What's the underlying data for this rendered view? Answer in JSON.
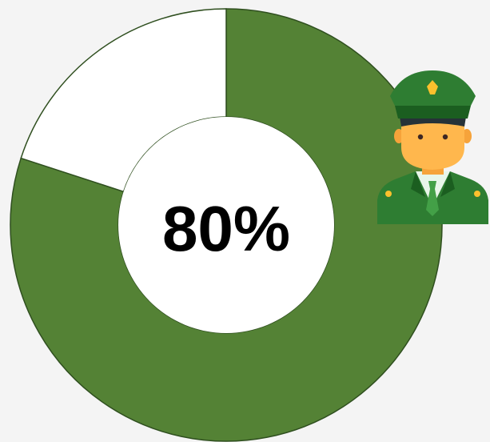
{
  "chart_data": {
    "type": "pie",
    "donut": true,
    "slices": [
      {
        "label": "",
        "value": 80,
        "color": "#548235"
      },
      {
        "label": "",
        "value": 20,
        "color": "#ffffff"
      }
    ],
    "center_label": "80%",
    "title": "",
    "legend": "none"
  },
  "icon": "police-officer-icon",
  "colors": {
    "background": "#f4f4f4",
    "filled": "#548235",
    "remaining": "#ffffff",
    "outline": "#2f4f1f"
  }
}
